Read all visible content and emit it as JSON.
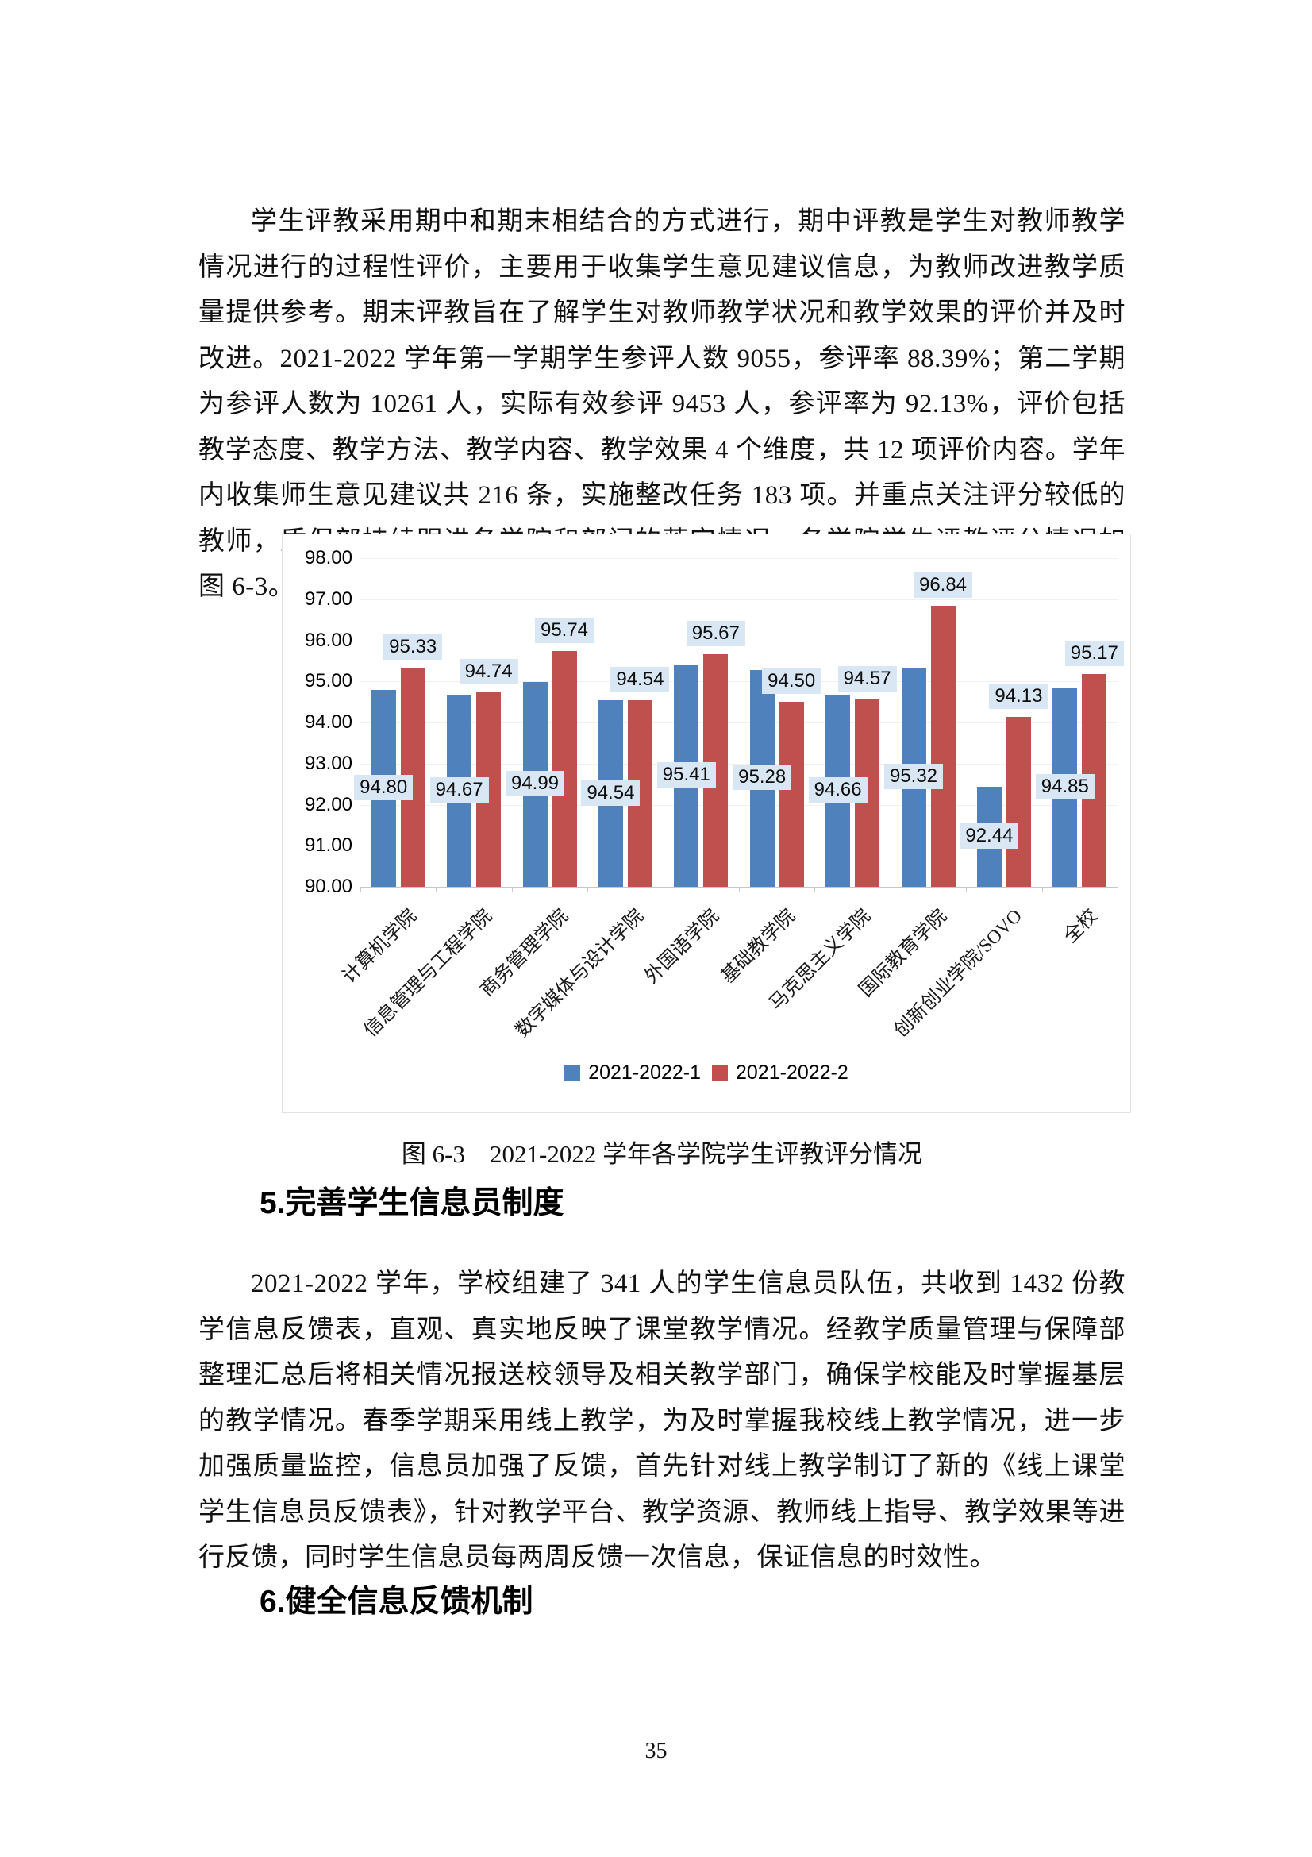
{
  "page": {
    "paragraph1": "学生评教采用期中和期末相结合的方式进行，期中评教是学生对教师教学情况进行的过程性评价，主要用于收集学生意见建议信息，为教师改进教学质量提供参考。期末评教旨在了解学生对教师教学状况和教学效果的评价并及时改进。2021-2022 学年第一学期学生参评人数 9055，参评率 88.39%；第二学期为参评人数为 10261 人，实际有效参评 9453 人，参评率为 92.13%，评价包括教学态度、教学方法、教学内容、教学效果 4 个维度，共 12 项评价内容。学年内收集师生意见建议共 216 条，实施整改任务 183 项。并重点关注评分较低的教师，质保部持续跟进各学院和部门的落实情况。各学院学生评教评分情况如图 6-3。",
    "figure_caption": "图 6-3　2021-2022 学年各学院学生评教评分情况",
    "heading5": "5.完善学生信息员制度",
    "paragraph2": "2021-2022 学年，学校组建了 341 人的学生信息员队伍，共收到 1432 份教学信息反馈表，直观、真实地反映了课堂教学情况。经教学质量管理与保障部整理汇总后将相关情况报送校领导及相关教学部门，确保学校能及时掌握基层的教学情况。春季学期采用线上教学，为及时掌握我校线上教学情况，进一步加强质量监控，信息员加强了反馈，首先针对线上教学制订了新的《线上课堂学生信息员反馈表》，针对教学平台、教学资源、教师线上指导、教学效果等进行反馈，同时学生信息员每两周反馈一次信息，保证信息的时效性。",
    "heading6": "6.健全信息反馈机制",
    "page_number": "35"
  },
  "chart_data": {
    "type": "bar",
    "title": "",
    "categories": [
      "计算机学院",
      "信息管理与工程学院",
      "商务管理学院",
      "数字媒体与设计学院",
      "外国语学院",
      "基础教学院",
      "马克思主义学院",
      "国际教育学院",
      "创新创业学院/SOVO",
      "全校"
    ],
    "series": [
      {
        "name": "2021-2022-1",
        "color": "#4F81BD",
        "values": [
          94.8,
          94.67,
          94.99,
          94.54,
          95.41,
          95.28,
          94.66,
          95.32,
          92.44,
          94.85
        ]
      },
      {
        "name": "2021-2022-2",
        "color": "#C0504D",
        "values": [
          95.33,
          94.74,
          95.74,
          94.54,
          95.67,
          94.5,
          94.57,
          96.84,
          94.13,
          95.17
        ]
      }
    ],
    "xlabel": "",
    "ylabel": "",
    "ylim": [
      90,
      98
    ],
    "ytick_step": 1,
    "grid": true,
    "legend_position": "bottom",
    "label_background": "#d9e7f5",
    "series1_label_placement": "inside-center",
    "series2_label_placement": "outside-end"
  }
}
